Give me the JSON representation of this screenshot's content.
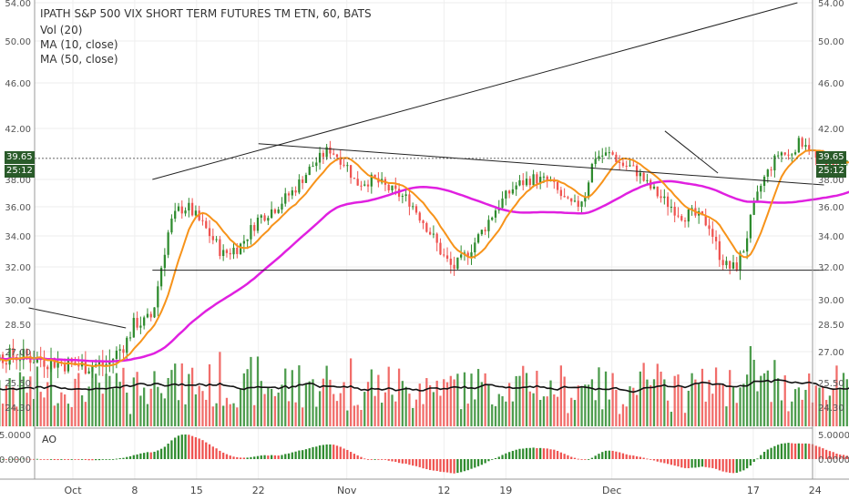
{
  "header": {
    "title": "IPATH S&P 500 VIX SHORT TERM FUTURES TM ETN, 60, BATS",
    "indicators": [
      "Vol (20)",
      "MA (10, close)",
      "MA (50, close)"
    ]
  },
  "ao_label": "AO",
  "price_tags": {
    "last_price": "39.65",
    "countdown": "25:12"
  },
  "colors": {
    "up": "#2e8b2e",
    "down": "#ef5350",
    "ma10": "#f7931a",
    "ma50": "#e020e0",
    "vol_ma": "#111111",
    "grid": "#eeeeee",
    "trendline": "#222222",
    "tag_bg": "#2a5b2a"
  },
  "chart_data": [
    {
      "type": "candlestick",
      "title": "IPATH S&P 500 VIX SHORT TERM FUTURES TM ETN, 60, BATS",
      "y_ticks_left": [
        "54.00",
        "50.00",
        "46.00",
        "42.00",
        "38.00",
        "36.00",
        "34.00",
        "32.00",
        "30.00",
        "28.50",
        "27.00",
        "25.50",
        "24.30"
      ],
      "y_ticks_right": [
        "54.00",
        "50.00",
        "46.00",
        "42.00",
        "38.00",
        "36.00",
        "34.00",
        "32.00",
        "30.00",
        "28.50",
        "27.00",
        "25.50",
        "24.30"
      ],
      "x_tick_labels": [
        "Oct",
        "8",
        "15",
        "22",
        "Nov",
        "12",
        "19",
        "Dec",
        "17",
        "24"
      ],
      "last_price": 39.65,
      "series_labels": [
        "MA (10, close)",
        "MA (50, close)"
      ],
      "key_prices": {
        "high": 42.2,
        "resistance": 39.65,
        "support": 31.8,
        "low": 26.2
      },
      "trendlines": [
        {
          "from": {
            "x": "Oct 10",
            "y": 38.0
          },
          "to": {
            "x": "Dec 22",
            "y": 54.0
          }
        },
        {
          "from": {
            "x": "Oct 22",
            "y": 40.8
          },
          "to": {
            "x": "Dec 25",
            "y": 37.6
          }
        },
        {
          "from": {
            "x": "Oct 10",
            "y": 31.8
          },
          "to": {
            "x": "Dec 25",
            "y": 31.8
          }
        },
        {
          "from": {
            "x": "Sep 26",
            "y": 29.5
          },
          "to": {
            "x": "Oct 7",
            "y": 28.3
          }
        },
        {
          "from": {
            "x": "Dec 7",
            "y": 41.8
          },
          "to": {
            "x": "Dec 13",
            "y": 38.5
          }
        }
      ],
      "indicators": [
        "Vol (20)",
        "MA (10, close)",
        "MA (50, close)"
      ]
    },
    {
      "type": "bar",
      "title": "AO",
      "y_ticks": [
        "5.0000",
        "0.0000"
      ]
    }
  ]
}
